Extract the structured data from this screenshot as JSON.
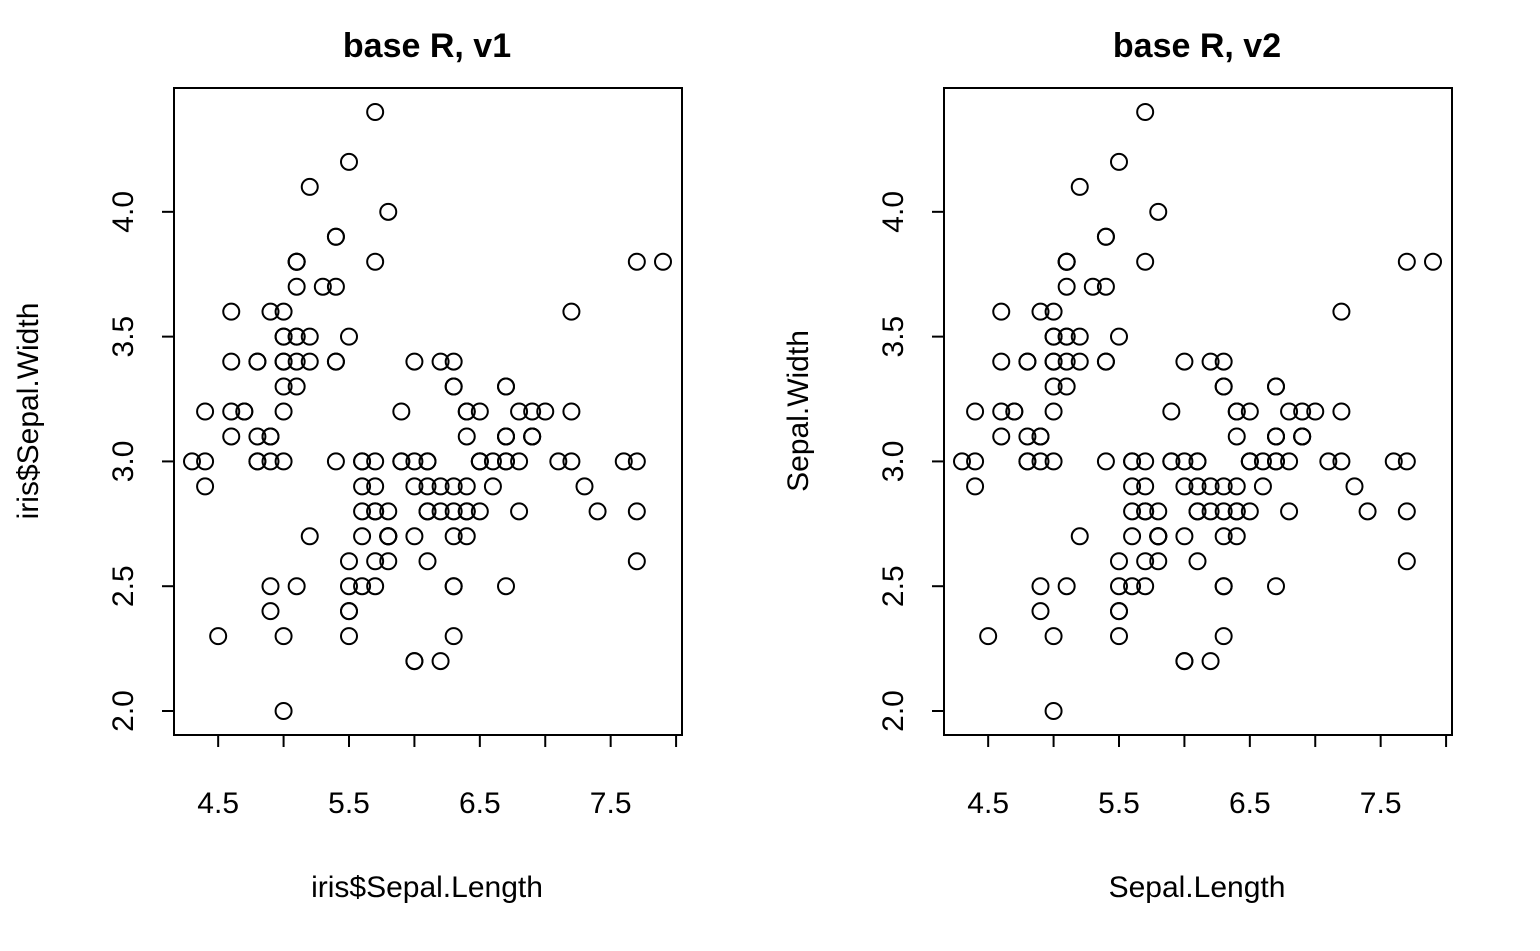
{
  "chart_data": [
    {
      "type": "scatter",
      "title": "base R, v1",
      "xlabel": "iris$Sepal.Length",
      "ylabel": "iris$Sepal.Width",
      "xlim": [
        4.3,
        7.9
      ],
      "ylim": [
        2.0,
        4.4
      ],
      "xticks": [
        "4.5",
        "5.5",
        "6.5",
        "7.5"
      ],
      "yticks": [
        "2.0",
        "2.5",
        "3.0",
        "3.5",
        "4.0"
      ],
      "grid": false,
      "points": [
        [
          5.1,
          3.5
        ],
        [
          4.9,
          3.0
        ],
        [
          4.7,
          3.2
        ],
        [
          4.6,
          3.1
        ],
        [
          5.0,
          3.6
        ],
        [
          5.4,
          3.9
        ],
        [
          4.6,
          3.4
        ],
        [
          5.0,
          3.4
        ],
        [
          4.4,
          2.9
        ],
        [
          4.9,
          3.1
        ],
        [
          5.4,
          3.7
        ],
        [
          4.8,
          3.4
        ],
        [
          4.8,
          3.0
        ],
        [
          4.3,
          3.0
        ],
        [
          5.8,
          4.0
        ],
        [
          5.7,
          4.4
        ],
        [
          5.4,
          3.9
        ],
        [
          5.1,
          3.5
        ],
        [
          5.7,
          3.8
        ],
        [
          5.1,
          3.8
        ],
        [
          5.4,
          3.4
        ],
        [
          5.1,
          3.7
        ],
        [
          4.6,
          3.6
        ],
        [
          5.1,
          3.3
        ],
        [
          4.8,
          3.4
        ],
        [
          5.0,
          3.0
        ],
        [
          5.0,
          3.4
        ],
        [
          5.2,
          3.5
        ],
        [
          5.2,
          3.4
        ],
        [
          4.7,
          3.2
        ],
        [
          4.8,
          3.1
        ],
        [
          5.4,
          3.4
        ],
        [
          5.2,
          4.1
        ],
        [
          5.5,
          4.2
        ],
        [
          4.9,
          3.1
        ],
        [
          5.0,
          3.2
        ],
        [
          5.5,
          3.5
        ],
        [
          4.9,
          3.6
        ],
        [
          4.4,
          3.0
        ],
        [
          5.1,
          3.4
        ],
        [
          5.0,
          3.5
        ],
        [
          4.5,
          2.3
        ],
        [
          4.4,
          3.2
        ],
        [
          5.0,
          3.5
        ],
        [
          5.1,
          3.8
        ],
        [
          4.8,
          3.0
        ],
        [
          5.1,
          3.8
        ],
        [
          4.6,
          3.2
        ],
        [
          5.3,
          3.7
        ],
        [
          5.0,
          3.3
        ],
        [
          7.0,
          3.2
        ],
        [
          6.4,
          3.2
        ],
        [
          6.9,
          3.1
        ],
        [
          5.5,
          2.3
        ],
        [
          6.5,
          2.8
        ],
        [
          5.7,
          2.8
        ],
        [
          6.3,
          3.3
        ],
        [
          4.9,
          2.4
        ],
        [
          6.6,
          2.9
        ],
        [
          5.2,
          2.7
        ],
        [
          5.0,
          2.0
        ],
        [
          5.9,
          3.0
        ],
        [
          6.0,
          2.2
        ],
        [
          6.1,
          2.9
        ],
        [
          5.6,
          2.9
        ],
        [
          6.7,
          3.1
        ],
        [
          5.6,
          3.0
        ],
        [
          5.8,
          2.7
        ],
        [
          6.2,
          2.2
        ],
        [
          5.6,
          2.5
        ],
        [
          5.9,
          3.2
        ],
        [
          6.1,
          2.8
        ],
        [
          6.3,
          2.5
        ],
        [
          6.1,
          2.8
        ],
        [
          6.4,
          2.9
        ],
        [
          6.6,
          3.0
        ],
        [
          6.8,
          2.8
        ],
        [
          6.7,
          3.0
        ],
        [
          6.0,
          2.9
        ],
        [
          5.7,
          2.6
        ],
        [
          5.5,
          2.4
        ],
        [
          5.5,
          2.4
        ],
        [
          5.8,
          2.7
        ],
        [
          6.0,
          2.7
        ],
        [
          5.4,
          3.0
        ],
        [
          6.0,
          3.4
        ],
        [
          6.7,
          3.1
        ],
        [
          6.3,
          2.3
        ],
        [
          5.6,
          3.0
        ],
        [
          5.5,
          2.5
        ],
        [
          5.5,
          2.6
        ],
        [
          6.1,
          3.0
        ],
        [
          5.8,
          2.6
        ],
        [
          5.0,
          2.3
        ],
        [
          5.6,
          2.7
        ],
        [
          5.7,
          3.0
        ],
        [
          5.7,
          2.9
        ],
        [
          6.2,
          2.9
        ],
        [
          5.1,
          2.5
        ],
        [
          5.7,
          2.8
        ],
        [
          6.3,
          3.3
        ],
        [
          5.8,
          2.7
        ],
        [
          7.1,
          3.0
        ],
        [
          6.3,
          2.9
        ],
        [
          6.5,
          3.0
        ],
        [
          7.6,
          3.0
        ],
        [
          4.9,
          2.5
        ],
        [
          7.3,
          2.9
        ],
        [
          6.7,
          2.5
        ],
        [
          7.2,
          3.6
        ],
        [
          6.5,
          3.2
        ],
        [
          6.4,
          2.7
        ],
        [
          6.8,
          3.0
        ],
        [
          5.7,
          2.5
        ],
        [
          5.8,
          2.8
        ],
        [
          6.4,
          3.2
        ],
        [
          6.5,
          3.0
        ],
        [
          7.7,
          3.8
        ],
        [
          7.7,
          2.6
        ],
        [
          6.0,
          2.2
        ],
        [
          6.9,
          3.2
        ],
        [
          5.6,
          2.8
        ],
        [
          7.7,
          2.8
        ],
        [
          6.3,
          2.7
        ],
        [
          6.7,
          3.3
        ],
        [
          7.2,
          3.2
        ],
        [
          6.2,
          2.8
        ],
        [
          6.1,
          3.0
        ],
        [
          6.4,
          2.8
        ],
        [
          7.2,
          3.0
        ],
        [
          7.4,
          2.8
        ],
        [
          7.9,
          3.8
        ],
        [
          6.4,
          2.8
        ],
        [
          6.3,
          2.8
        ],
        [
          6.1,
          2.6
        ],
        [
          7.7,
          3.0
        ],
        [
          6.3,
          3.4
        ],
        [
          6.4,
          3.1
        ],
        [
          6.0,
          3.0
        ],
        [
          6.9,
          3.1
        ],
        [
          6.7,
          3.1
        ],
        [
          6.9,
          3.1
        ],
        [
          5.8,
          2.7
        ],
        [
          6.8,
          3.2
        ],
        [
          6.7,
          3.3
        ],
        [
          6.7,
          3.0
        ],
        [
          6.3,
          2.5
        ],
        [
          6.5,
          3.0
        ],
        [
          6.2,
          3.4
        ],
        [
          5.9,
          3.0
        ]
      ]
    },
    {
      "type": "scatter",
      "title": "base R, v2",
      "xlabel": "Sepal.Length",
      "ylabel": "Sepal.Width",
      "xlim": [
        4.3,
        7.9
      ],
      "ylim": [
        2.0,
        4.4
      ],
      "xticks": [
        "4.5",
        "5.5",
        "6.5",
        "7.5"
      ],
      "yticks": [
        "2.0",
        "2.5",
        "3.0",
        "3.5",
        "4.0"
      ],
      "grid": false,
      "points": [
        [
          5.1,
          3.5
        ],
        [
          4.9,
          3.0
        ],
        [
          4.7,
          3.2
        ],
        [
          4.6,
          3.1
        ],
        [
          5.0,
          3.6
        ],
        [
          5.4,
          3.9
        ],
        [
          4.6,
          3.4
        ],
        [
          5.0,
          3.4
        ],
        [
          4.4,
          2.9
        ],
        [
          4.9,
          3.1
        ],
        [
          5.4,
          3.7
        ],
        [
          4.8,
          3.4
        ],
        [
          4.8,
          3.0
        ],
        [
          4.3,
          3.0
        ],
        [
          5.8,
          4.0
        ],
        [
          5.7,
          4.4
        ],
        [
          5.4,
          3.9
        ],
        [
          5.1,
          3.5
        ],
        [
          5.7,
          3.8
        ],
        [
          5.1,
          3.8
        ],
        [
          5.4,
          3.4
        ],
        [
          5.1,
          3.7
        ],
        [
          4.6,
          3.6
        ],
        [
          5.1,
          3.3
        ],
        [
          4.8,
          3.4
        ],
        [
          5.0,
          3.0
        ],
        [
          5.0,
          3.4
        ],
        [
          5.2,
          3.5
        ],
        [
          5.2,
          3.4
        ],
        [
          4.7,
          3.2
        ],
        [
          4.8,
          3.1
        ],
        [
          5.4,
          3.4
        ],
        [
          5.2,
          4.1
        ],
        [
          5.5,
          4.2
        ],
        [
          4.9,
          3.1
        ],
        [
          5.0,
          3.2
        ],
        [
          5.5,
          3.5
        ],
        [
          4.9,
          3.6
        ],
        [
          4.4,
          3.0
        ],
        [
          5.1,
          3.4
        ],
        [
          5.0,
          3.5
        ],
        [
          4.5,
          2.3
        ],
        [
          4.4,
          3.2
        ],
        [
          5.0,
          3.5
        ],
        [
          5.1,
          3.8
        ],
        [
          4.8,
          3.0
        ],
        [
          5.1,
          3.8
        ],
        [
          4.6,
          3.2
        ],
        [
          5.3,
          3.7
        ],
        [
          5.0,
          3.3
        ],
        [
          7.0,
          3.2
        ],
        [
          6.4,
          3.2
        ],
        [
          6.9,
          3.1
        ],
        [
          5.5,
          2.3
        ],
        [
          6.5,
          2.8
        ],
        [
          5.7,
          2.8
        ],
        [
          6.3,
          3.3
        ],
        [
          4.9,
          2.4
        ],
        [
          6.6,
          2.9
        ],
        [
          5.2,
          2.7
        ],
        [
          5.0,
          2.0
        ],
        [
          5.9,
          3.0
        ],
        [
          6.0,
          2.2
        ],
        [
          6.1,
          2.9
        ],
        [
          5.6,
          2.9
        ],
        [
          6.7,
          3.1
        ],
        [
          5.6,
          3.0
        ],
        [
          5.8,
          2.7
        ],
        [
          6.2,
          2.2
        ],
        [
          5.6,
          2.5
        ],
        [
          5.9,
          3.2
        ],
        [
          6.1,
          2.8
        ],
        [
          6.3,
          2.5
        ],
        [
          6.1,
          2.8
        ],
        [
          6.4,
          2.9
        ],
        [
          6.6,
          3.0
        ],
        [
          6.8,
          2.8
        ],
        [
          6.7,
          3.0
        ],
        [
          6.0,
          2.9
        ],
        [
          5.7,
          2.6
        ],
        [
          5.5,
          2.4
        ],
        [
          5.5,
          2.4
        ],
        [
          5.8,
          2.7
        ],
        [
          6.0,
          2.7
        ],
        [
          5.4,
          3.0
        ],
        [
          6.0,
          3.4
        ],
        [
          6.7,
          3.1
        ],
        [
          6.3,
          2.3
        ],
        [
          5.6,
          3.0
        ],
        [
          5.5,
          2.5
        ],
        [
          5.5,
          2.6
        ],
        [
          6.1,
          3.0
        ],
        [
          5.8,
          2.6
        ],
        [
          5.0,
          2.3
        ],
        [
          5.6,
          2.7
        ],
        [
          5.7,
          3.0
        ],
        [
          5.7,
          2.9
        ],
        [
          6.2,
          2.9
        ],
        [
          5.1,
          2.5
        ],
        [
          5.7,
          2.8
        ],
        [
          6.3,
          3.3
        ],
        [
          5.8,
          2.7
        ],
        [
          7.1,
          3.0
        ],
        [
          6.3,
          2.9
        ],
        [
          6.5,
          3.0
        ],
        [
          7.6,
          3.0
        ],
        [
          4.9,
          2.5
        ],
        [
          7.3,
          2.9
        ],
        [
          6.7,
          2.5
        ],
        [
          7.2,
          3.6
        ],
        [
          6.5,
          3.2
        ],
        [
          6.4,
          2.7
        ],
        [
          6.8,
          3.0
        ],
        [
          5.7,
          2.5
        ],
        [
          5.8,
          2.8
        ],
        [
          6.4,
          3.2
        ],
        [
          6.5,
          3.0
        ],
        [
          7.7,
          3.8
        ],
        [
          7.7,
          2.6
        ],
        [
          6.0,
          2.2
        ],
        [
          6.9,
          3.2
        ],
        [
          5.6,
          2.8
        ],
        [
          7.7,
          2.8
        ],
        [
          6.3,
          2.7
        ],
        [
          6.7,
          3.3
        ],
        [
          7.2,
          3.2
        ],
        [
          6.2,
          2.8
        ],
        [
          6.1,
          3.0
        ],
        [
          6.4,
          2.8
        ],
        [
          7.2,
          3.0
        ],
        [
          7.4,
          2.8
        ],
        [
          7.9,
          3.8
        ],
        [
          6.4,
          2.8
        ],
        [
          6.3,
          2.8
        ],
        [
          6.1,
          2.6
        ],
        [
          7.7,
          3.0
        ],
        [
          6.3,
          3.4
        ],
        [
          6.4,
          3.1
        ],
        [
          6.0,
          3.0
        ],
        [
          6.9,
          3.1
        ],
        [
          6.7,
          3.1
        ],
        [
          6.9,
          3.1
        ],
        [
          5.8,
          2.7
        ],
        [
          6.8,
          3.2
        ],
        [
          6.7,
          3.3
        ],
        [
          6.7,
          3.0
        ],
        [
          6.3,
          2.5
        ],
        [
          6.5,
          3.0
        ],
        [
          6.2,
          3.4
        ],
        [
          5.9,
          3.0
        ]
      ]
    }
  ]
}
